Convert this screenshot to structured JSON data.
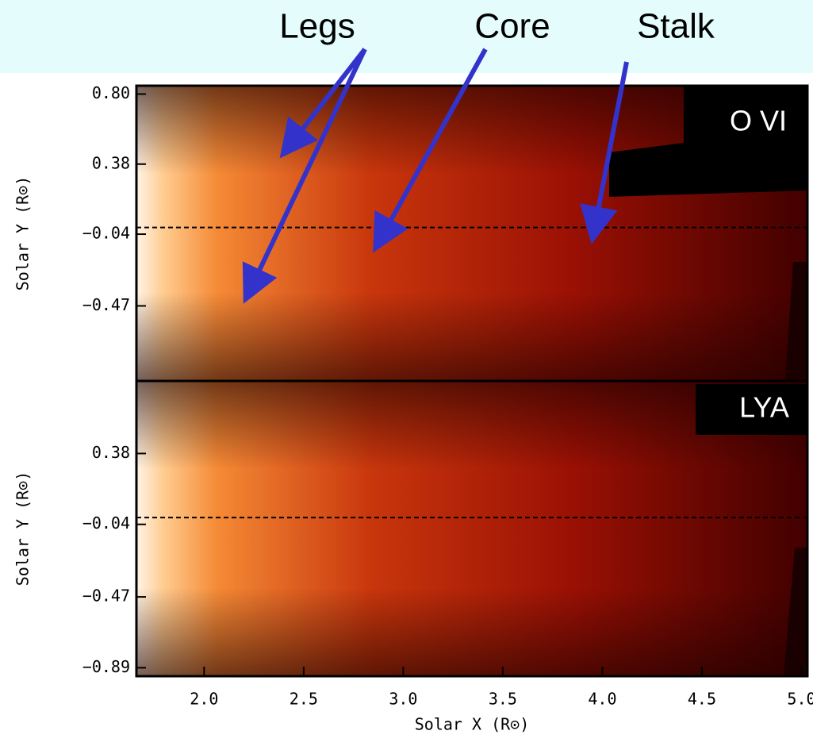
{
  "chart_data": [
    {
      "type": "heatmap",
      "label": "O VI",
      "ylabel": "Solar Y (R⊙)",
      "annotations": [
        "Legs",
        "Core",
        "Stalk"
      ],
      "xlim": [
        1.66,
        5.03
      ],
      "ylim": [
        -0.92,
        0.85
      ],
      "yticks": [
        {
          "value": 0.8,
          "label": "0.80"
        },
        0.38,
        {
          "value": -0.04,
          "label": "−0.04"
        },
        {
          "value": -0.47,
          "label": "−0.47"
        }
      ],
      "hline": 0
    },
    {
      "type": "heatmap",
      "label": "LYA",
      "ylabel": "Solar Y (R⊙)",
      "xlabel": "Solar X (R⊙)",
      "xlim": [
        1.66,
        5.03
      ],
      "ylim": [
        -0.94,
        0.81
      ],
      "xticks": [
        {
          "value": 2,
          "label": "2.0"
        },
        2.5,
        {
          "value": 3,
          "label": "3.0"
        },
        3.5,
        {
          "value": 4,
          "label": "4.0"
        },
        4.5,
        {
          "value": 5,
          "label": "5.0"
        }
      ],
      "yticks": [
        0.38,
        {
          "value": -0.04,
          "label": "−0.04"
        },
        {
          "value": -0.47,
          "label": "−0.47"
        },
        {
          "value": -0.89,
          "label": "−0.89"
        }
      ],
      "hline": 0
    }
  ]
}
